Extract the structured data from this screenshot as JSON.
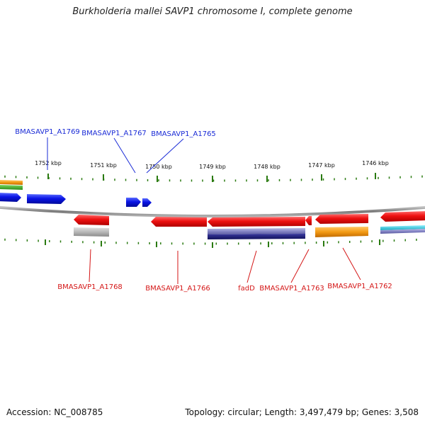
{
  "title": "Burkholderia mallei SAVP1 chromosome I, complete genome",
  "footer": {
    "accession": "Accession: NC_008785",
    "summary": "Topology: circular; Length: 3,497,479 bp; Genes: 3,508"
  },
  "ticks": [
    {
      "label": "1752 kbp"
    },
    {
      "label": "1751 kbp"
    },
    {
      "label": "1750 kbp"
    },
    {
      "label": "1749 kbp"
    },
    {
      "label": "1748 kbp"
    },
    {
      "label": "1747 kbp"
    },
    {
      "label": "1746 kbp"
    }
  ],
  "top_gene_labels": [
    {
      "text": "BMASAVP1_A1769"
    },
    {
      "text": "BMASAVP1_A1767"
    },
    {
      "text": "BMASAVP1_A1765"
    }
  ],
  "bottom_gene_labels": [
    {
      "text": "BMASAVP1_A1768"
    },
    {
      "text": "BMASAVP1_A1766"
    },
    {
      "text": "fadD"
    },
    {
      "text": "BMASAVP1_A1763"
    },
    {
      "text": "BMASAVP1_A1762"
    }
  ],
  "colors": {
    "forward_genes": "#0a14e6",
    "reverse_genes": "#ee1111",
    "forward_labels": "#1a2bd6",
    "reverse_labels": "#d41616",
    "ticks": "#2a7a10",
    "backbone": "#888888",
    "gray_feature": "#b8b8b8",
    "navy_feature": "#2c2c8a",
    "orange_feature": "#f39a14",
    "cyan_feature": "#20c0d8",
    "green_feature": "#33aa22"
  }
}
